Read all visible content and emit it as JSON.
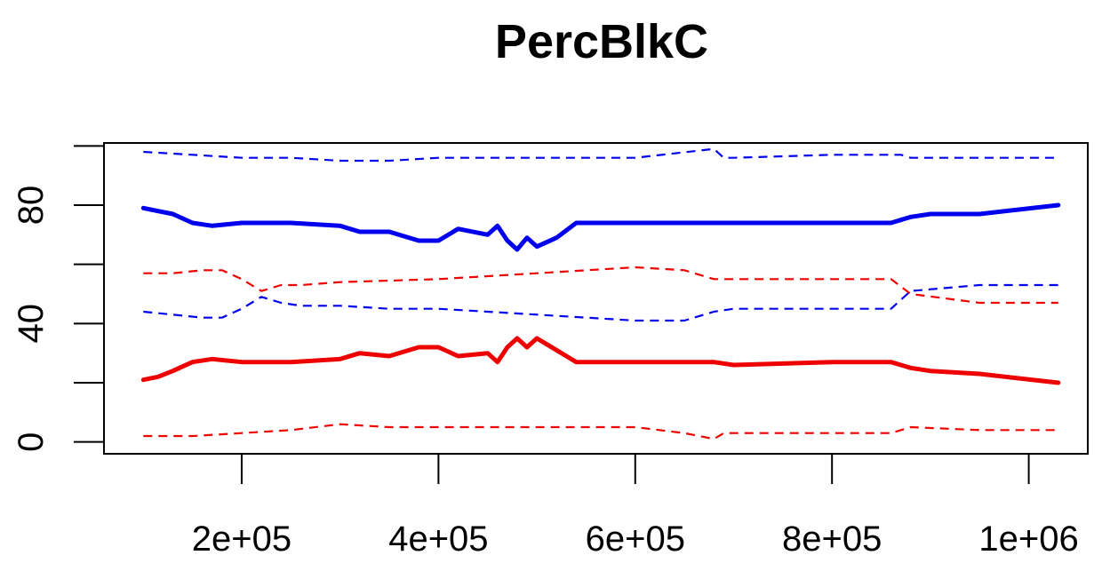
{
  "chart_data": {
    "type": "line",
    "title": "PercBlkC",
    "xlabel": "",
    "ylabel": "",
    "xlim": [
      60000,
      1060000
    ],
    "ylim": [
      -4,
      101
    ],
    "x_ticks": [
      200000,
      400000,
      600000,
      800000,
      1000000
    ],
    "x_tick_labels": [
      "2e+05",
      "4e+05",
      "6e+05",
      "8e+05",
      "1e+06"
    ],
    "y_ticks": [
      0,
      20,
      40,
      60,
      80,
      100
    ],
    "y_tick_labels": [
      "0",
      "",
      "40",
      "",
      "80",
      ""
    ],
    "grid": false,
    "legend": "none",
    "series": [
      {
        "color": "#0000ee",
        "style": "solid",
        "x": [
          100000,
          115000,
          130000,
          150000,
          170000,
          200000,
          250000,
          300000,
          320000,
          350000,
          380000,
          400000,
          420000,
          450000,
          460000,
          470000,
          480000,
          490000,
          500000,
          520000,
          540000,
          600000,
          700000,
          800000,
          860000,
          880000,
          900000,
          950000,
          1030000
        ],
        "values": [
          79,
          78,
          77,
          74,
          73,
          74,
          74,
          73,
          71,
          71,
          68,
          68,
          72,
          70,
          73,
          68,
          65,
          69,
          66,
          69,
          74,
          74,
          74,
          74,
          74,
          76,
          77,
          77,
          80
        ]
      },
      {
        "color": "#0000ee",
        "style": "dashed",
        "x": [
          100000,
          150000,
          200000,
          250000,
          300000,
          350000,
          400000,
          500000,
          600000,
          680000,
          690000,
          700000,
          800000,
          870000,
          880000,
          950000,
          1030000
        ],
        "values": [
          98,
          97,
          96,
          96,
          95,
          95,
          96,
          96,
          96,
          99,
          96,
          96,
          97,
          97,
          96,
          96,
          96
        ]
      },
      {
        "color": "#0000ee",
        "style": "dashed",
        "x": [
          100000,
          130000,
          160000,
          180000,
          200000,
          220000,
          240000,
          260000,
          300000,
          350000,
          400000,
          500000,
          600000,
          650000,
          680000,
          700000,
          800000,
          860000,
          880000,
          950000,
          1030000
        ],
        "values": [
          44,
          43,
          42,
          42,
          45,
          49,
          47,
          46,
          46,
          45,
          45,
          43,
          41,
          41,
          44,
          45,
          45,
          45,
          51,
          53,
          53
        ]
      },
      {
        "color": "#ee0000",
        "style": "solid",
        "x": [
          100000,
          115000,
          130000,
          150000,
          170000,
          200000,
          250000,
          300000,
          320000,
          350000,
          380000,
          400000,
          420000,
          450000,
          460000,
          470000,
          480000,
          490000,
          500000,
          520000,
          540000,
          600000,
          680000,
          700000,
          800000,
          860000,
          880000,
          900000,
          950000,
          1030000
        ],
        "values": [
          21,
          22,
          24,
          27,
          28,
          27,
          27,
          28,
          30,
          29,
          32,
          32,
          29,
          30,
          27,
          32,
          35,
          32,
          35,
          31,
          27,
          27,
          27,
          26,
          27,
          27,
          25,
          24,
          23,
          20
        ]
      },
      {
        "color": "#ee0000",
        "style": "dashed",
        "x": [
          100000,
          130000,
          160000,
          180000,
          200000,
          220000,
          240000,
          260000,
          300000,
          400000,
          500000,
          600000,
          650000,
          680000,
          700000,
          800000,
          860000,
          880000,
          950000,
          1030000
        ],
        "values": [
          57,
          57,
          58,
          58,
          55,
          51,
          53,
          53,
          54,
          55,
          57,
          59,
          58,
          55,
          55,
          55,
          55,
          50,
          47,
          47
        ]
      },
      {
        "color": "#ee0000",
        "style": "dashed",
        "x": [
          100000,
          150000,
          200000,
          250000,
          300000,
          350000,
          400000,
          500000,
          600000,
          650000,
          680000,
          690000,
          700000,
          800000,
          860000,
          880000,
          950000,
          1030000
        ],
        "values": [
          2,
          2,
          3,
          4,
          6,
          5,
          5,
          5,
          5,
          3,
          1,
          3,
          3,
          3,
          3,
          5,
          4,
          4
        ]
      }
    ]
  }
}
